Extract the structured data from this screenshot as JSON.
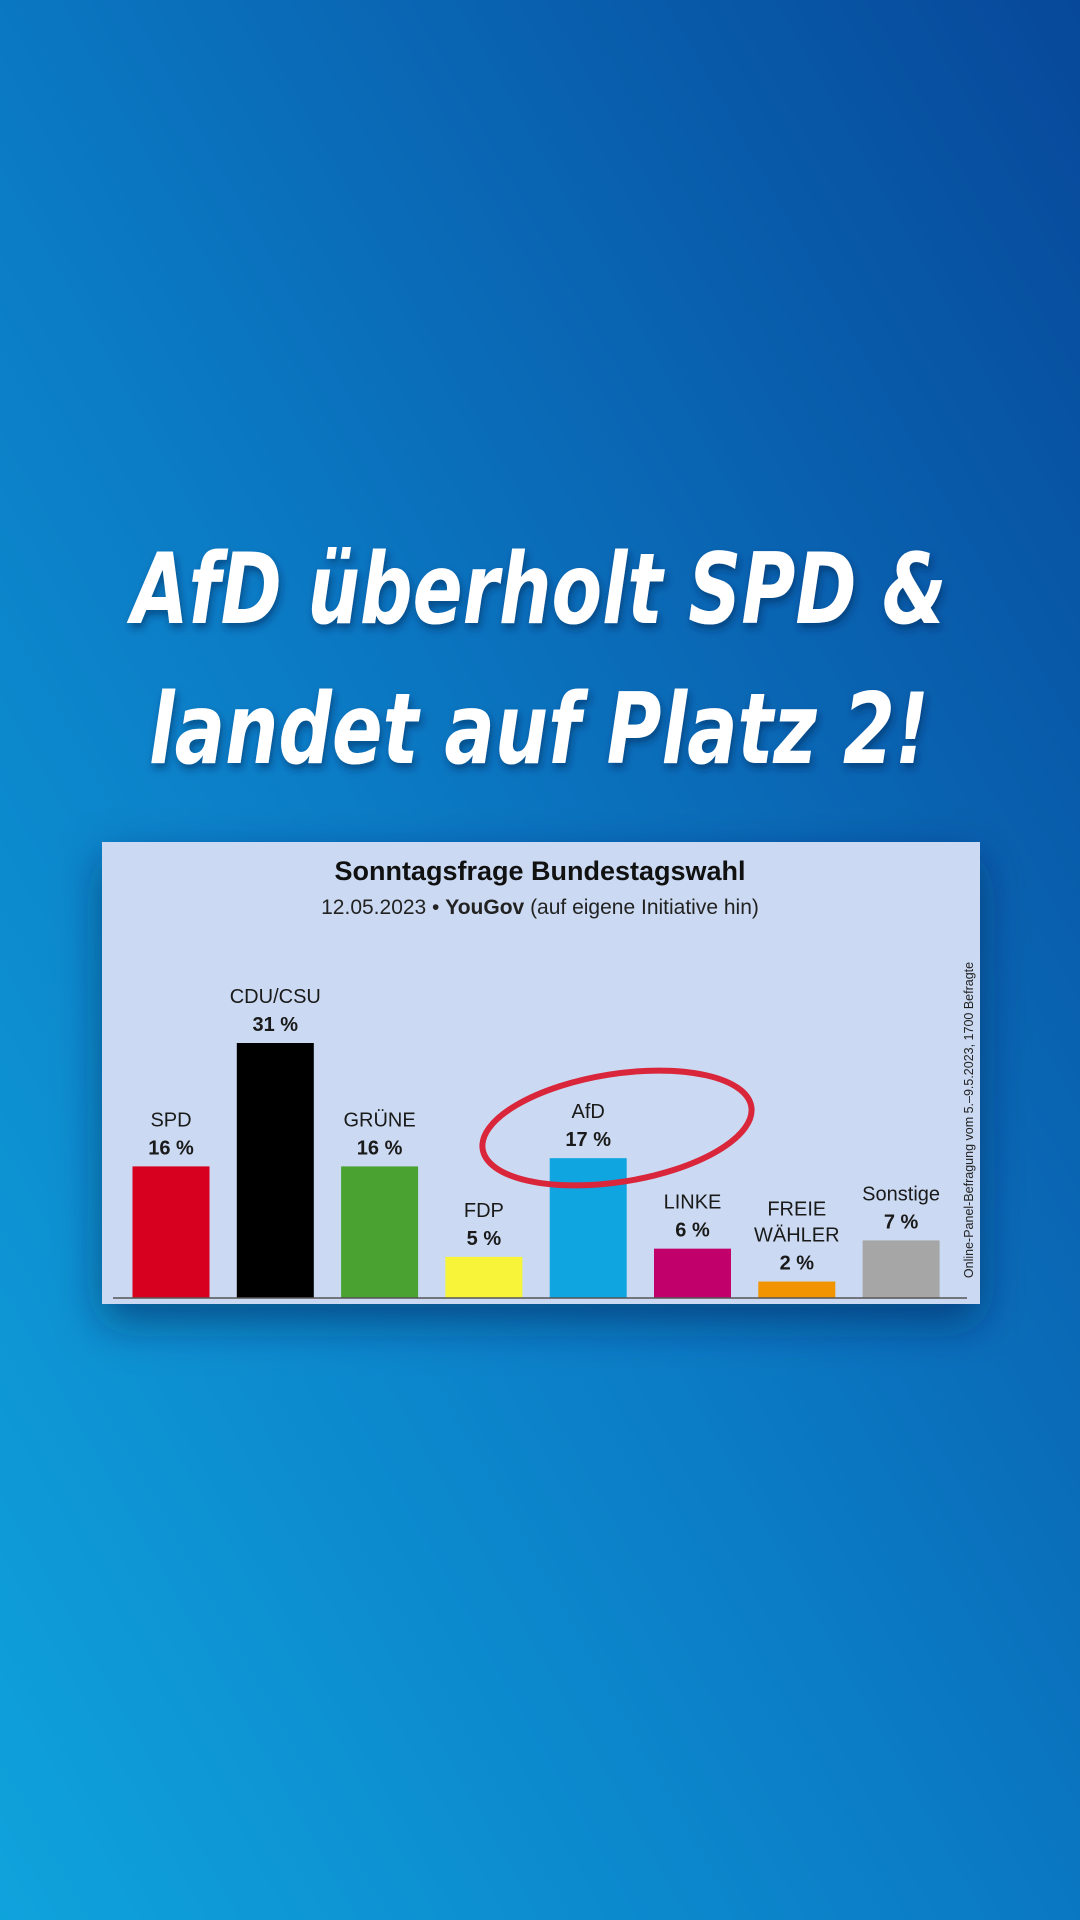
{
  "headline": [
    "AfD überholt SPD &",
    "landet auf Platz 2!"
  ],
  "chart_data": {
    "type": "bar",
    "title": "Sonntagsfrage Bundestagswahl",
    "subtitle": [
      "12.05.2023 •",
      "YouGov",
      "(auf eigene Initiative hin)"
    ],
    "note": "Online-Panel-Befragung vom 5.–9.5.2023, 1700 Befragte",
    "categories": [
      "SPD",
      "CDU/CSU",
      "GRÜNE",
      "FDP",
      "AfD",
      "LINKE",
      "FREIE WÄHLER",
      "Sonstige"
    ],
    "values": [
      16,
      31,
      16,
      5,
      17,
      6,
      2,
      7
    ],
    "value_labels": [
      "16 %",
      "31 %",
      "16 %",
      "5 %",
      "17 %",
      "6 %",
      "2 %",
      "7 %"
    ],
    "colors": [
      "#d7001f",
      "#000000",
      "#4aa331",
      "#f7f43a",
      "#0ea5e0",
      "#c1006b",
      "#f29300",
      "#a6a6a6"
    ]
  }
}
